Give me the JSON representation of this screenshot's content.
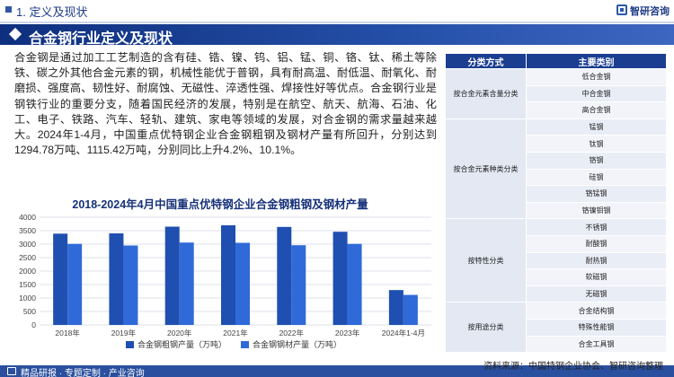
{
  "header": {
    "section": "1. 定义及现状",
    "logo_text": "智研咨询"
  },
  "banner": {
    "title": "合金钢行业定义及现状"
  },
  "paragraph": "合金钢是通过加工工艺制造的含有硅、锆、镍、钨、铝、锰、铜、铬、钛、稀土等除铁、碳之外其他合金元素的钢，机械性能优于普钢，具有耐高温、耐低温、耐氧化、耐磨损、强度高、韧性好、耐腐蚀、无磁性、淬透性强、焊接性好等优点。合金钢行业是钢铁行业的重要分支，随着国民经济的发展，特别是在航空、航天、航海、石油、化工、电子、铁路、汽车、轻轨、建筑、家电等领域的发展，对合金钢的需求量越来越大。2024年1-4月，中国重点优特钢企业合金钢粗钢及钢材产量有所回升，分别达到1294.78万吨、1115.42万吨，分别同比上升4.2%、10.1%。",
  "chart_data": {
    "type": "bar",
    "title": "2018-2024年4月中国重点优特钢企业合金钢粗钢及钢材产量",
    "categories": [
      "2018年",
      "2019年",
      "2020年",
      "2021年",
      "2022年",
      "2023年",
      "2024年1-4月"
    ],
    "series": [
      {
        "name": "合金钢粗钢产量（万吨）",
        "values": [
          3390,
          3400,
          3650,
          3700,
          3640,
          3460,
          1294.78
        ],
        "color": "#1f4fb0"
      },
      {
        "name": "合金钢钢材产量（万吨）",
        "values": [
          3010,
          2950,
          3060,
          3050,
          2960,
          3010,
          1115.42
        ],
        "color": "#2f6ad8"
      }
    ],
    "yticks": [
      0,
      500,
      1000,
      1500,
      2000,
      2500,
      3000,
      3500,
      4000
    ],
    "ylim": [
      0,
      4000
    ],
    "grid": true,
    "legend": "bottom"
  },
  "table": {
    "headers": [
      "分类方式",
      "主要类别"
    ],
    "groups": [
      {
        "category": "按合金元素含量分类",
        "items": [
          "低合金钢",
          "中合金钢",
          "高合金钢"
        ]
      },
      {
        "category": "按合金元素种类分类",
        "items": [
          "锰钢",
          "钛钢",
          "铬钢",
          "硅钢",
          "铬锰钢",
          "铬镍钼钢"
        ]
      },
      {
        "category": "按特性分类",
        "items": [
          "不锈钢",
          "耐酸钢",
          "耐热钢",
          "软磁钢",
          "无磁钢"
        ]
      },
      {
        "category": "按用途分类",
        "items": [
          "合金结构钢",
          "特殊性能钢",
          "合金工具钢"
        ]
      }
    ]
  },
  "footer": {
    "source": "资料来源：中国特钢企业协会、智研咨询整理",
    "slogan": "精品研报 · 专题定制 · 产业咨询"
  }
}
